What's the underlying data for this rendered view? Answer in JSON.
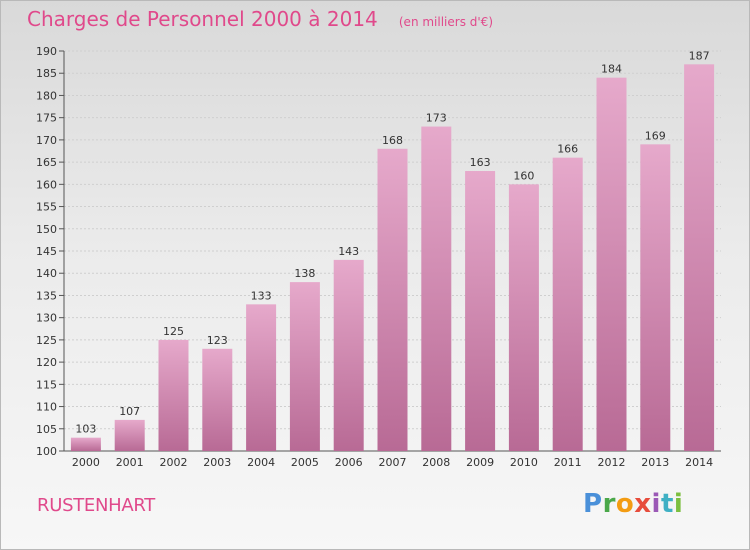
{
  "header": {
    "title": "Charges de Personnel 2000 à 2014",
    "subtitle": "(en milliers d'€)"
  },
  "footer": {
    "commune": "RUSTENHART",
    "brand": {
      "letters": [
        "P",
        "r",
        "o",
        "x",
        "i",
        "t",
        "i"
      ],
      "colors": [
        "#4a90d9",
        "#4aa84a",
        "#f39c12",
        "#e74c3c",
        "#9b59b6",
        "#3fb0c4",
        "#7cbf3f"
      ]
    }
  },
  "chart_data": {
    "type": "bar",
    "title": "Charges de Personnel 2000 à 2014",
    "subtitle": "(en milliers d'€)",
    "categories": [
      "2000",
      "2001",
      "2002",
      "2003",
      "2004",
      "2005",
      "2006",
      "2007",
      "2008",
      "2009",
      "2010",
      "2011",
      "2012",
      "2013",
      "2014"
    ],
    "values": [
      103,
      107,
      125,
      123,
      133,
      138,
      143,
      168,
      173,
      163,
      160,
      166,
      184,
      169,
      187
    ],
    "ylim": [
      100,
      190
    ],
    "ytick_step": 5,
    "grid": true,
    "bar_color": "#d98ab4",
    "bar_color_light": "#e6a9cb",
    "bar_color_dark": "#b86a95",
    "data_labels": true
  }
}
